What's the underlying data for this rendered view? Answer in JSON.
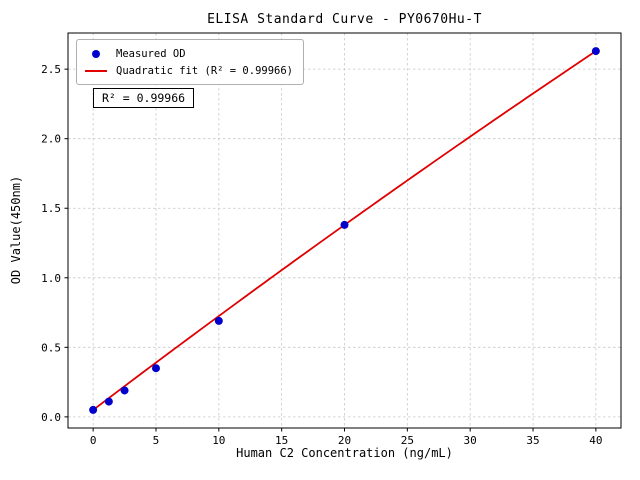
{
  "chart_data": {
    "type": "scatter",
    "title": "ELISA Standard Curve - PY0670Hu-T",
    "xlabel": "Human C2 Concentration (ng/mL)",
    "ylabel": "OD Value(450nm)",
    "xlim": [
      -2,
      42
    ],
    "ylim": [
      -0.08,
      2.76
    ],
    "xticks": [
      0,
      5,
      10,
      15,
      20,
      25,
      30,
      35,
      40
    ],
    "xtick_labels": [
      "0",
      "5",
      "10",
      "15",
      "20",
      "25",
      "30",
      "35",
      "40"
    ],
    "yticks": [
      0.0,
      0.5,
      1.0,
      1.5,
      2.0,
      2.5
    ],
    "ytick_labels": [
      "0.0",
      "0.5",
      "1.0",
      "1.5",
      "2.0",
      "2.5"
    ],
    "grid": true,
    "legend_position": "upper-left",
    "annotation": "R² = 0.99966",
    "style": {
      "grid_color": "#c8c8c8",
      "axis_color": "#000000",
      "background": "#ffffff"
    },
    "legend": [
      {
        "label": "Measured OD",
        "marker": "point",
        "color": "#0000cd"
      },
      {
        "label": "Quadratic fit (R² = 0.99966)",
        "marker": "line",
        "color": "#e00000"
      }
    ],
    "series": [
      {
        "name": "Measured OD",
        "type": "scatter",
        "color": "#0000cd",
        "x": [
          0,
          1.25,
          2.5,
          5,
          10,
          20,
          40
        ],
        "y": [
          0.05,
          0.11,
          0.19,
          0.35,
          0.69,
          1.38,
          2.63
        ]
      },
      {
        "name": "Quadratic fit",
        "type": "line",
        "color": "#e00000",
        "x_range": [
          0,
          40
        ],
        "coefficients": {
          "a": -0.0001,
          "b": 0.0685,
          "c": 0.05
        },
        "r_squared": 0.99966
      }
    ]
  }
}
